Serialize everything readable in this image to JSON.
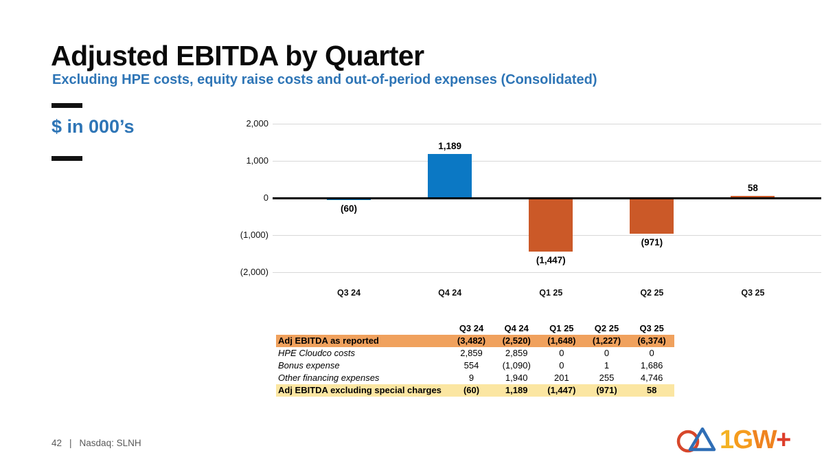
{
  "slide": {
    "title": "Adjusted EBITDA by Quarter",
    "subtitle": "Excluding HPE costs, equity raise costs and out-of-period expenses (Consolidated)",
    "units_label": "$ in 000’s",
    "footer": {
      "page_number": "42",
      "separator": "|",
      "ticker_label": "Nasdaq: SLNH"
    }
  },
  "colors": {
    "accent_blue": "#2E75B6",
    "bar_blue": "#0B78C4",
    "bar_orange": "#CB5928",
    "gridline": "#D8D8D8",
    "axis_line": "#000000",
    "table_band_orange": "#F0A15D",
    "table_band_yellow": "#FBE6A2",
    "footer_gray": "#595959",
    "logo_circle_red": "#D7472B",
    "logo_triangle_blue": "#2F6EB6"
  },
  "chart_data": {
    "type": "bar",
    "title": "",
    "xlabel": "",
    "ylabel": "",
    "categories": [
      "Q3 24",
      "Q4 24",
      "Q1 25",
      "Q2 25",
      "Q3 25"
    ],
    "values": [
      -60,
      1189,
      -1447,
      -971,
      58
    ],
    "value_labels": [
      "(60)",
      "1,189",
      "(1,447)",
      "(971)",
      "58"
    ],
    "bar_colors": [
      "#0B78C4",
      "#0B78C4",
      "#CB5928",
      "#CB5928",
      "#CB5928"
    ],
    "ylim": [
      -2000,
      2000
    ],
    "y_ticks": [
      {
        "value": 2000,
        "label": "2,000"
      },
      {
        "value": 1000,
        "label": "1,000"
      },
      {
        "value": 0,
        "label": "0"
      },
      {
        "value": -1000,
        "label": "(1,000)"
      },
      {
        "value": -2000,
        "label": "(2,000)"
      }
    ],
    "grid": true,
    "legend": "none"
  },
  "table": {
    "columns": [
      "Q3 24",
      "Q4 24",
      "Q1 25",
      "Q2 25",
      "Q3 25"
    ],
    "rows": [
      {
        "label": "Adj EBITDA as reported",
        "values": [
          "(3,482)",
          "(2,520)",
          "(1,648)",
          "(1,227)",
          "(6,374)"
        ],
        "style": "band-orange"
      },
      {
        "label": "HPE Cloudco costs",
        "values": [
          "2,859",
          "2,859",
          "0",
          "0",
          "0"
        ],
        "style": "italic"
      },
      {
        "label": "Bonus expense",
        "values": [
          "554",
          "(1,090)",
          "0",
          "1",
          "1,686"
        ],
        "style": "italic"
      },
      {
        "label": "Other financing expenses",
        "values": [
          "9",
          "1,940",
          "201",
          "255",
          "4,746"
        ],
        "style": "italic"
      },
      {
        "label": "Adj EBITDA excluding special charges",
        "values": [
          "(60)",
          "1,189",
          "(1,447)",
          "(971)",
          "58"
        ],
        "style": "band-yellow"
      }
    ]
  },
  "logo": {
    "mark_icon": "circle-triangle-logo-mark",
    "letters": [
      {
        "char": "1",
        "color": "#F4B223"
      },
      {
        "char": "G",
        "color": "#F59C1E"
      },
      {
        "char": "W",
        "color": "#EF8320"
      },
      {
        "char": "+",
        "color": "#DD3D2A"
      }
    ]
  }
}
